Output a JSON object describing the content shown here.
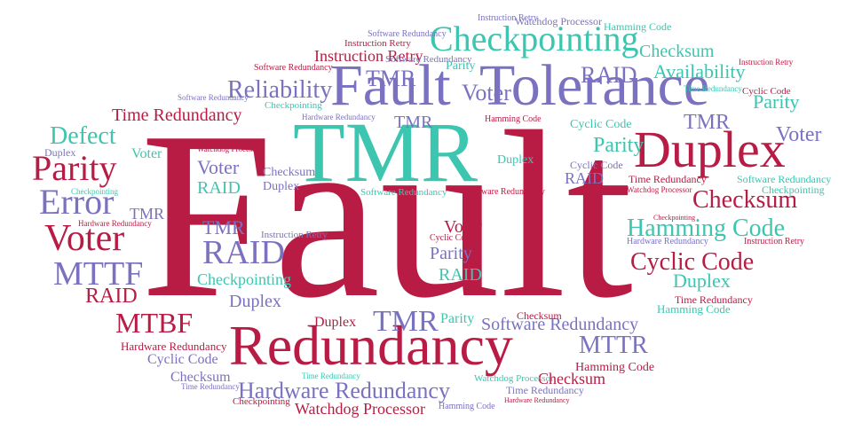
{
  "colors": {
    "crimson": "#b81c45",
    "teal": "#3cc6b0",
    "lavender": "#7a72c0"
  },
  "words": [
    "Fault",
    "Fault",
    "Tolerance",
    "TMR",
    "Duplex",
    "Redundancy",
    "Checkpointing",
    "Parity",
    "Voter",
    "Error",
    "MTTF",
    "MTBF",
    "Hardware Redundancy",
    "Software Redundancy",
    "RAID",
    "Reliability",
    "Availability",
    "Defect",
    "Checksum",
    "Hamming Code",
    "Cyclic Code",
    "Time Redundancy",
    "Instruction Retry",
    "Watchdog Processor",
    "MTTR"
  ]
}
